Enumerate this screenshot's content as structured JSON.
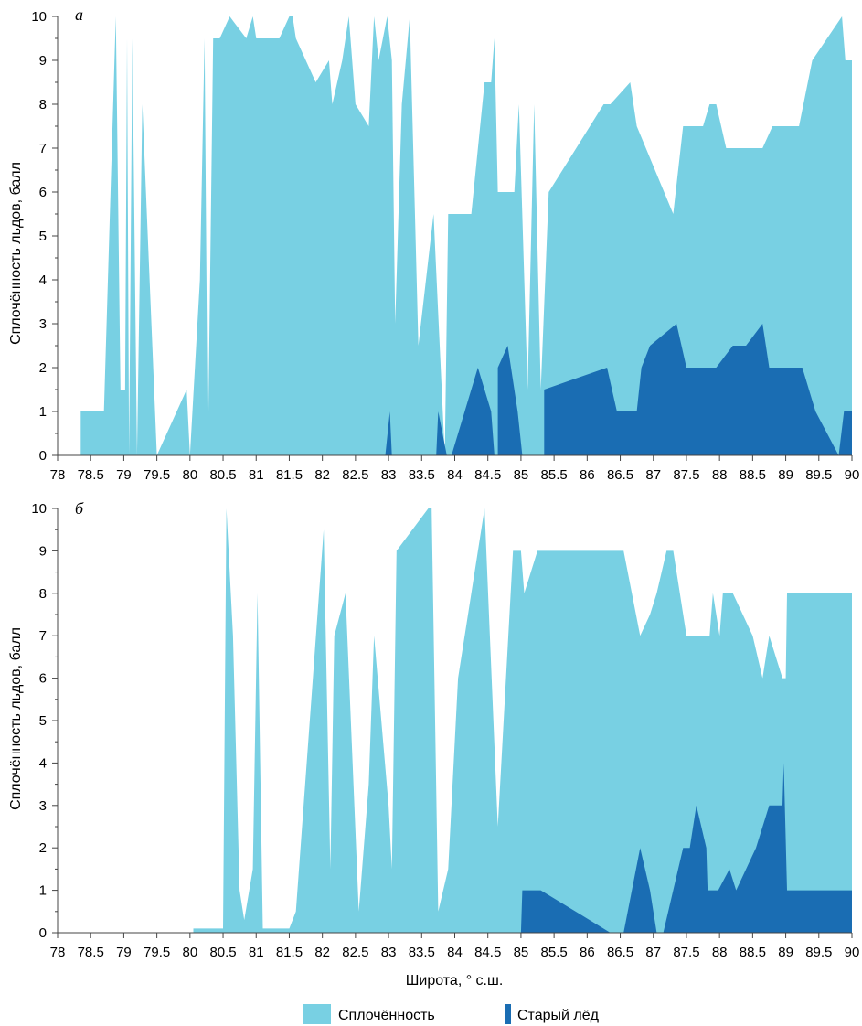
{
  "colors": {
    "total": "#78d0e3",
    "old": "#1a6db3",
    "axis": "#444444"
  },
  "legend": {
    "total_label": "Сплочённость",
    "old_label": "Старый лёд"
  },
  "xlabel": "Широта, ° с.ш.",
  "chart_data": [
    {
      "type": "area",
      "panel_label": "а",
      "ylabel": "Сплочённость льдов, балл",
      "xlim": [
        78,
        90
      ],
      "ylim": [
        0,
        10
      ],
      "xticks": [
        "78",
        "78.5",
        "79",
        "79.5",
        "80",
        "80.5",
        "81",
        "81.5",
        "82",
        "82.5",
        "83",
        "83.5",
        "84",
        "84.5",
        "85",
        "85.5",
        "86",
        "86.5",
        "87",
        "87.5",
        "88",
        "88.5",
        "89",
        "89.5",
        "90"
      ],
      "yticks": [
        "0",
        "1",
        "2",
        "3",
        "4",
        "5",
        "6",
        "7",
        "8",
        "9",
        "10"
      ],
      "series": [
        {
          "name": "Сплочённость",
          "points": [
            [
              78.35,
              0
            ],
            [
              78.35,
              1
            ],
            [
              78.7,
              1
            ],
            [
              78.88,
              10
            ],
            [
              78.95,
              1.5
            ],
            [
              79.02,
              1.5
            ],
            [
              79.05,
              9.5
            ],
            [
              79.08,
              0
            ],
            [
              79.13,
              9.5
            ],
            [
              79.2,
              0
            ],
            [
              79.28,
              8
            ],
            [
              79.5,
              0
            ],
            [
              79.95,
              1.5
            ],
            [
              80,
              0
            ],
            [
              80.15,
              4
            ],
            [
              80.22,
              9.5
            ],
            [
              80.27,
              0
            ],
            [
              80.35,
              9.5
            ],
            [
              80.45,
              9.5
            ],
            [
              80.6,
              10
            ],
            [
              80.85,
              9.5
            ],
            [
              80.95,
              10
            ],
            [
              81,
              9.5
            ],
            [
              81.35,
              9.5
            ],
            [
              81.5,
              10
            ],
            [
              81.55,
              10
            ],
            [
              81.6,
              9.5
            ],
            [
              81.9,
              8.5
            ],
            [
              82.1,
              9
            ],
            [
              82.15,
              8
            ],
            [
              82.3,
              9
            ],
            [
              82.4,
              10
            ],
            [
              82.5,
              8
            ],
            [
              82.7,
              7.5
            ],
            [
              82.78,
              10
            ],
            [
              82.85,
              9
            ],
            [
              82.98,
              10
            ],
            [
              83.05,
              9
            ],
            [
              83.1,
              3
            ],
            [
              83.2,
              8
            ],
            [
              83.32,
              10
            ],
            [
              83.45,
              2.5
            ],
            [
              83.68,
              5.5
            ],
            [
              83.85,
              0
            ],
            [
              83.9,
              5.5
            ],
            [
              84.25,
              5.5
            ],
            [
              84.45,
              8.5
            ],
            [
              84.55,
              8.5
            ],
            [
              84.6,
              9.5
            ],
            [
              84.65,
              6
            ],
            [
              84.9,
              6
            ],
            [
              84.97,
              8
            ],
            [
              85.1,
              1.5
            ],
            [
              85.2,
              8
            ],
            [
              85.3,
              1.5
            ],
            [
              85.42,
              6
            ],
            [
              86.25,
              8
            ],
            [
              86.35,
              8
            ],
            [
              86.65,
              8.5
            ],
            [
              86.75,
              7.5
            ],
            [
              87.3,
              5.5
            ],
            [
              87.45,
              7.5
            ],
            [
              87.75,
              7.5
            ],
            [
              87.85,
              8
            ],
            [
              87.95,
              8
            ],
            [
              88.1,
              7
            ],
            [
              88.65,
              7
            ],
            [
              88.8,
              7.5
            ],
            [
              89.2,
              7.5
            ],
            [
              89.4,
              9
            ],
            [
              89.85,
              10
            ],
            [
              89.9,
              9
            ],
            [
              90,
              9
            ],
            [
              90,
              0
            ]
          ]
        },
        {
          "name": "Старый лёд",
          "points": [
            [
              82.95,
              0
            ],
            [
              83.02,
              1
            ],
            [
              83.05,
              0
            ],
            [
              83.72,
              0
            ],
            [
              83.75,
              1
            ],
            [
              83.88,
              0
            ],
            [
              83.95,
              0
            ],
            [
              84.35,
              2
            ],
            [
              84.55,
              1
            ],
            [
              84.6,
              0
            ],
            [
              84.65,
              0
            ],
            [
              84.65,
              2
            ],
            [
              84.8,
              2.5
            ],
            [
              84.95,
              1
            ],
            [
              85.02,
              0
            ],
            [
              85.35,
              0
            ],
            [
              85.35,
              1.5
            ],
            [
              86.3,
              2
            ],
            [
              86.45,
              1
            ],
            [
              86.75,
              1
            ],
            [
              86.82,
              2
            ],
            [
              86.95,
              2.5
            ],
            [
              87.35,
              3
            ],
            [
              87.5,
              2
            ],
            [
              87.95,
              2
            ],
            [
              88.2,
              2.5
            ],
            [
              88.4,
              2.5
            ],
            [
              88.65,
              3
            ],
            [
              88.75,
              2
            ],
            [
              89.25,
              2
            ],
            [
              89.45,
              1
            ],
            [
              89.8,
              0
            ],
            [
              89.88,
              1
            ],
            [
              90,
              1
            ],
            [
              90,
              0
            ]
          ]
        }
      ]
    },
    {
      "type": "area",
      "panel_label": "б",
      "ylabel": "Сплочённость льдов, балл",
      "xlim": [
        78,
        90
      ],
      "ylim": [
        0,
        10
      ],
      "xticks": [
        "78",
        "78.5",
        "79",
        "79.5",
        "80",
        "80.5",
        "81",
        "81.5",
        "82",
        "82.5",
        "83",
        "83.5",
        "84",
        "84.5",
        "85",
        "85.5",
        "86",
        "86.5",
        "87",
        "87.5",
        "88",
        "88.5",
        "89",
        "89.5",
        "90"
      ],
      "yticks": [
        "0",
        "1",
        "2",
        "3",
        "4",
        "5",
        "6",
        "7",
        "8",
        "9",
        "10"
      ],
      "series": [
        {
          "name": "Сплочённость",
          "points": [
            [
              80.05,
              0
            ],
            [
              80.05,
              0.1
            ],
            [
              80.5,
              0.1
            ],
            [
              80.55,
              10
            ],
            [
              80.65,
              7
            ],
            [
              80.75,
              1
            ],
            [
              80.82,
              0.3
            ],
            [
              80.95,
              1.5
            ],
            [
              81.02,
              8
            ],
            [
              81.1,
              0.1
            ],
            [
              81.5,
              0.1
            ],
            [
              81.6,
              0.5
            ],
            [
              82.02,
              9.5
            ],
            [
              82.12,
              1.5
            ],
            [
              82.18,
              7
            ],
            [
              82.35,
              8
            ],
            [
              82.55,
              0.5
            ],
            [
              82.7,
              3.5
            ],
            [
              82.78,
              7
            ],
            [
              83,
              3
            ],
            [
              83.05,
              1.5
            ],
            [
              83.12,
              9
            ],
            [
              83.6,
              10
            ],
            [
              83.65,
              10
            ],
            [
              83.75,
              0.5
            ],
            [
              83.9,
              1.5
            ],
            [
              84.05,
              6
            ],
            [
              84.45,
              10
            ],
            [
              84.65,
              2.5
            ],
            [
              84.88,
              9
            ],
            [
              85,
              9
            ],
            [
              85.05,
              8
            ],
            [
              85.25,
              9
            ],
            [
              86.55,
              9
            ],
            [
              86.8,
              7
            ],
            [
              86.95,
              7.5
            ],
            [
              87.05,
              8
            ],
            [
              87.2,
              9
            ],
            [
              87.3,
              9
            ],
            [
              87.5,
              7
            ],
            [
              87.85,
              7
            ],
            [
              87.9,
              8
            ],
            [
              88,
              7
            ],
            [
              88.05,
              8
            ],
            [
              88.2,
              8
            ],
            [
              88.5,
              7
            ],
            [
              88.65,
              6
            ],
            [
              88.75,
              7
            ],
            [
              88.95,
              6
            ],
            [
              89,
              6
            ],
            [
              89.02,
              8
            ],
            [
              90,
              8
            ],
            [
              90,
              0
            ]
          ]
        },
        {
          "name": "Старый лёд",
          "points": [
            [
              85,
              0
            ],
            [
              85.02,
              1
            ],
            [
              85.3,
              1
            ],
            [
              86.35,
              0
            ],
            [
              86.55,
              0
            ],
            [
              86.8,
              2
            ],
            [
              86.95,
              1
            ],
            [
              87.05,
              0
            ],
            [
              87.15,
              0
            ],
            [
              87.45,
              2
            ],
            [
              87.55,
              2
            ],
            [
              87.65,
              3
            ],
            [
              87.8,
              2
            ],
            [
              87.82,
              1
            ],
            [
              87.98,
              1
            ],
            [
              88.15,
              1.5
            ],
            [
              88.25,
              1
            ],
            [
              88.55,
              2
            ],
            [
              88.75,
              3
            ],
            [
              88.95,
              3
            ],
            [
              88.97,
              4
            ],
            [
              89.02,
              1
            ],
            [
              90,
              1
            ],
            [
              90,
              0
            ]
          ]
        }
      ]
    }
  ]
}
